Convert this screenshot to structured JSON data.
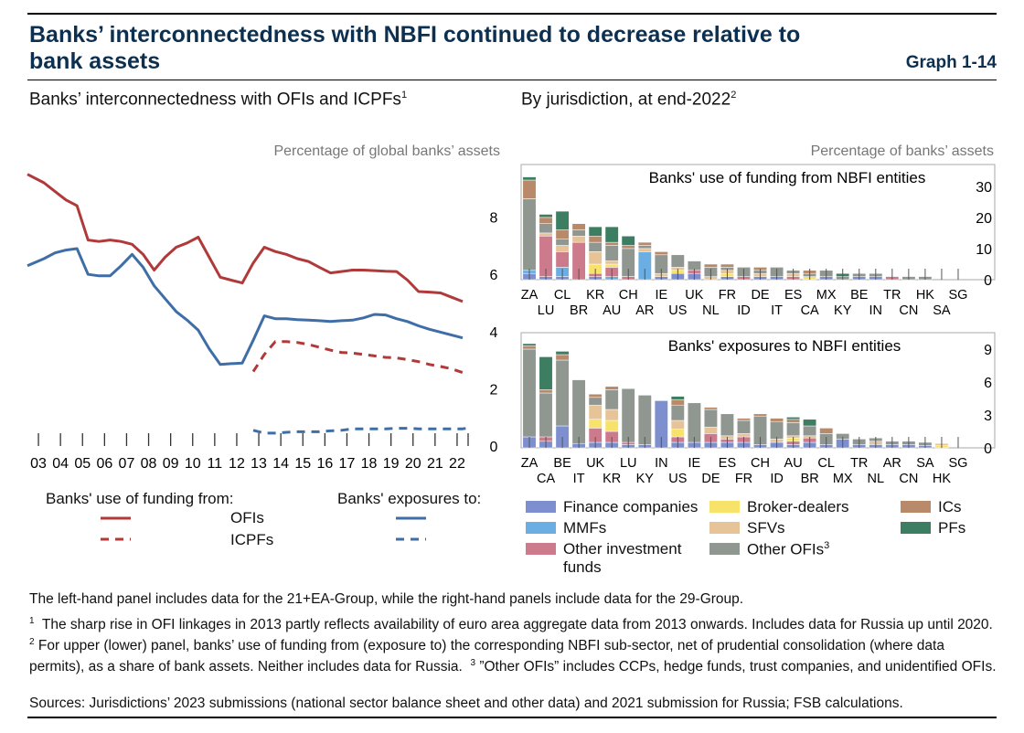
{
  "header": {
    "title": "Banks’ interconnectedness with NBFI continued to decrease relative to bank assets",
    "graph_no": "Graph 1-14"
  },
  "left_panel": {
    "title": "Banks’ interconnectedness with OFIs and ICPFs",
    "title_sup": "1",
    "unit": "Percentage of global banks’ assets",
    "legend_funding": "Banks' use of funding from:",
    "legend_exposures": "Banks' exposures to:",
    "legend_ofis": "OFIs",
    "legend_icpfs": "ICPFs"
  },
  "right_panel": {
    "title": "By jurisdiction, at end-2022",
    "title_sup": "2",
    "unit": "Percentage of banks’ assets",
    "legend": {
      "finance_companies": "Finance companies",
      "mmfs": "MMFs",
      "other_investment_funds": "Other investment funds",
      "broker_dealers": "Broker-dealers",
      "sfvs": "SFVs",
      "other_ofis": "Other OFIs",
      "other_ofis_sup": "3",
      "ics": "ICs",
      "pfs": "PFs"
    }
  },
  "colors": {
    "title": "#0d3050",
    "ofi_red": "#b03a3a",
    "exposure_blue": "#3f6ea7",
    "finance_companies": "#7e8fcf",
    "mmfs": "#6aaee4",
    "other_investment_funds": "#cd7b8c",
    "broker_dealers": "#f7e36a",
    "sfvs": "#e6c498",
    "other_ofis": "#909690",
    "ics": "#b88a6a",
    "pfs": "#3d7e62"
  },
  "notes": {
    "n0": "The left-hand panel includes data for the 21+EA-Group, while the right-hand panels include data for the 29-Group.",
    "n1_sup": "1",
    "n1": "The sharp rise in OFI linkages in 2013 partly reflects availability of euro area aggregate data from 2013 onwards. Includes data for Russia up until 2020.",
    "n2_sup": "2",
    "n2": "For upper (lower) panel, banks’ use of funding from (exposure to) the corresponding NBFI sub-sector, net of prudential consolidation (where data permits), as a share of bank assets. Neither includes data for Russia.",
    "n3_sup": "3",
    "n3": "”Other OFIs” includes CCPs, hedge funds, trust companies, and unidentified OFIs.",
    "sources": "Sources: Jurisdictions’ 2023 submissions (national sector balance sheet and other data) and 2021 submission for Russia; FSB calculations."
  },
  "chart_data": [
    {
      "type": "line",
      "title": "Banks’ interconnectedness with OFIs and ICPFs",
      "ylabel": "Percentage of global banks’ assets",
      "ylim": [
        0,
        10
      ],
      "yticks": [
        0,
        2,
        4,
        6,
        8
      ],
      "categories": [
        "03",
        "04",
        "05",
        "06",
        "07",
        "08",
        "09",
        "10",
        "11",
        "12",
        "13",
        "14",
        "15",
        "16",
        "17",
        "18",
        "19",
        "20",
        "21",
        "22"
      ],
      "series": [
        {
          "name": "Banks' use of funding from OFIs",
          "style": "solid",
          "color": "#b03a3a",
          "x_start": 2002.5,
          "x_end": 2022.5,
          "y_start": 9.5,
          "x": [
            2003.25,
            2003.75,
            2004.25,
            2004.75,
            2005.25,
            2005.75,
            2006.25,
            2006.75,
            2007.25,
            2007.75,
            2008.25,
            2008.75,
            2009.25,
            2009.75,
            2010.25,
            2010.75,
            2011.25,
            2011.75,
            2012.25,
            2012.75,
            2013.25,
            2013.75,
            2014.25,
            2014.75,
            2015.25,
            2015.75,
            2016.25,
            2016.75,
            2017.25,
            2017.75,
            2018.25,
            2018.75,
            2019.25,
            2019.75,
            2020.25,
            2020.75,
            2021.25,
            2021.75,
            2022.25
          ],
          "y": [
            9.2,
            8.9,
            8.6,
            8.4,
            7.2,
            7.15,
            7.2,
            7.15,
            7.05,
            6.7,
            6.15,
            6.6,
            6.95,
            7.1,
            7.3,
            6.6,
            5.9,
            5.8,
            5.7,
            6.4,
            6.95,
            6.8,
            6.7,
            6.55,
            6.45,
            6.25,
            6.05,
            6.1,
            6.15,
            6.15,
            6.13,
            6.11,
            6.1,
            5.8,
            5.4,
            5.38,
            5.35,
            5.2,
            5.05
          ]
        },
        {
          "name": "Banks' use of funding from ICPFs",
          "style": "dashed",
          "color": "#b03a3a",
          "x": [
            2012.75,
            2013.25,
            2013.75,
            2014.25,
            2014.75,
            2015.25,
            2015.75,
            2016.25,
            2016.75,
            2017.25,
            2017.75,
            2018.25,
            2018.75,
            2019.25,
            2019.75,
            2020.25,
            2020.75,
            2021.25,
            2021.75,
            2022.25,
            2022.5
          ],
          "y": [
            2.6,
            3.2,
            3.65,
            3.65,
            3.62,
            3.55,
            3.45,
            3.35,
            3.27,
            3.25,
            3.2,
            3.15,
            3.1,
            3.08,
            3.02,
            2.95,
            2.85,
            2.78,
            2.7,
            2.57,
            2.5
          ]
        },
        {
          "name": "Banks' exposures to OFIs",
          "style": "solid",
          "color": "#3f6ea7",
          "x_start": 2002.5,
          "x_end": 2022.5,
          "y_start": 6.3,
          "x": [
            2003.25,
            2003.75,
            2004.25,
            2004.75,
            2005.25,
            2005.75,
            2006.25,
            2006.75,
            2007.25,
            2007.75,
            2008.25,
            2008.75,
            2009.25,
            2009.75,
            2010.25,
            2010.75,
            2011.25,
            2011.75,
            2012.25,
            2012.75,
            2013.25,
            2013.75,
            2014.25,
            2014.75,
            2015.25,
            2015.75,
            2016.25,
            2016.75,
            2017.25,
            2017.75,
            2018.25,
            2018.75,
            2019.25,
            2019.75,
            2020.25,
            2020.75,
            2021.25,
            2021.75,
            2022.25
          ],
          "y": [
            6.55,
            6.75,
            6.85,
            6.9,
            6.0,
            5.95,
            5.95,
            6.3,
            6.7,
            6.25,
            5.6,
            5.15,
            4.7,
            4.4,
            4.05,
            3.4,
            2.85,
            2.88,
            2.9,
            3.7,
            4.55,
            4.45,
            4.45,
            4.42,
            4.4,
            4.38,
            4.35,
            4.38,
            4.4,
            4.48,
            4.6,
            4.58,
            4.45,
            4.35,
            4.2,
            4.08,
            3.98,
            3.88,
            3.78
          ]
        },
        {
          "name": "Banks' exposures to ICPFs",
          "style": "dashed",
          "color": "#3f6ea7",
          "x": [
            2012.75,
            2013.25,
            2013.75,
            2014.25,
            2014.75,
            2015.25,
            2015.75,
            2016.25,
            2016.75,
            2017.25,
            2017.75,
            2018.25,
            2018.75,
            2019.25,
            2019.75,
            2020.25,
            2020.75,
            2021.25,
            2021.75,
            2022.25,
            2022.5
          ],
          "y": [
            0.55,
            0.45,
            0.45,
            0.48,
            0.5,
            0.5,
            0.5,
            0.53,
            0.55,
            0.6,
            0.6,
            0.6,
            0.6,
            0.62,
            0.62,
            0.6,
            0.6,
            0.6,
            0.6,
            0.6,
            0.63
          ]
        }
      ]
    },
    {
      "type": "bar",
      "stacked": true,
      "title": "Banks' use of funding from NBFI entities",
      "ylabel": "Percentage of banks’ assets",
      "ylim": [
        0,
        37
      ],
      "yticks": [
        0,
        10,
        20,
        30
      ],
      "categories": [
        "ZA",
        "LU",
        "CL",
        "BR",
        "KR",
        "AU",
        "CH",
        "AR",
        "IE",
        "US",
        "UK",
        "NL",
        "FR",
        "ID",
        "DE",
        "IT",
        "ES",
        "CA",
        "MX",
        "KY",
        "BE",
        "IN",
        "TR",
        "CN",
        "HK",
        "SA",
        "SG"
      ],
      "label_rows": [
        [
          "ZA",
          "CL",
          "KR",
          "CH",
          "IE",
          "UK",
          "FR",
          "DE",
          "ES",
          "MX",
          "BE",
          "TR",
          "HK",
          "SG"
        ],
        [
          "LU",
          "BR",
          "AU",
          "AR",
          "US",
          "NL",
          "ID",
          "IT",
          "CA",
          "KY",
          "IN",
          "CN",
          "SA"
        ]
      ],
      "series_order": [
        "finance_companies",
        "mmfs",
        "other_investment_funds",
        "broker_dealers",
        "sfvs",
        "other_ofis",
        "ics",
        "pfs"
      ],
      "values": [
        [
          2,
          1,
          0,
          0,
          0,
          23,
          6,
          1
        ],
        [
          1,
          0,
          13,
          0,
          1,
          3,
          2,
          1
        ],
        [
          1,
          3,
          5,
          0,
          2,
          2,
          3,
          6
        ],
        [
          0,
          0,
          12,
          0,
          2,
          2,
          2,
          0
        ],
        [
          1,
          0,
          1,
          3,
          4,
          3,
          2,
          3
        ],
        [
          0,
          1,
          3,
          1,
          1,
          5,
          1,
          5
        ],
        [
          0,
          0,
          1,
          0,
          0,
          9,
          1,
          3
        ],
        [
          0,
          9,
          0,
          0,
          1,
          1,
          1,
          0
        ],
        [
          1,
          0,
          0,
          0,
          1,
          6,
          1,
          0
        ],
        [
          2,
          0,
          0,
          1,
          1,
          4,
          0,
          0
        ],
        [
          2,
          0,
          1,
          0,
          0,
          3,
          0,
          0
        ],
        [
          0,
          0,
          0,
          0,
          1,
          3,
          1,
          0
        ],
        [
          1,
          0,
          0,
          1,
          1,
          1,
          1,
          0
        ],
        [
          0,
          0,
          1,
          0,
          0,
          3,
          0,
          0
        ],
        [
          1,
          0,
          0,
          0,
          1,
          1,
          1,
          0
        ],
        [
          1,
          0,
          0,
          0,
          0,
          3,
          0,
          0
        ],
        [
          0,
          0,
          1,
          0,
          1,
          1,
          0,
          0
        ],
        [
          0,
          0,
          0,
          1,
          0,
          1,
          1,
          0
        ],
        [
          1,
          0,
          0,
          0,
          0,
          2,
          0,
          0
        ],
        [
          0,
          0,
          0,
          0,
          0,
          1,
          0,
          1
        ],
        [
          1,
          0,
          0,
          0,
          0,
          1,
          0,
          0
        ],
        [
          1,
          0,
          0,
          0,
          0,
          1,
          0,
          0
        ],
        [
          0,
          0,
          1,
          0,
          0,
          0,
          0,
          0
        ],
        [
          0,
          0,
          0,
          0,
          0,
          1,
          0,
          0
        ],
        [
          0,
          0,
          0,
          0,
          0,
          1,
          0,
          0
        ],
        [
          0,
          0,
          0,
          0,
          0,
          0,
          0,
          0
        ],
        [
          0,
          0,
          0,
          0,
          0,
          0,
          0,
          0
        ]
      ]
    },
    {
      "type": "bar",
      "stacked": true,
      "title": "Banks' exposures to NBFI entities",
      "ylabel": "Percentage of banks’ assets",
      "ylim": [
        0,
        10.5
      ],
      "yticks": [
        0,
        3,
        6,
        9
      ],
      "categories": [
        "ZA",
        "CA",
        "BE",
        "IT",
        "UK",
        "KR",
        "LU",
        "KY",
        "IN",
        "US",
        "IE",
        "DE",
        "ES",
        "FR",
        "CH",
        "ID",
        "AU",
        "BR",
        "CL",
        "MX",
        "TR",
        "NL",
        "AR",
        "CN",
        "SA",
        "HK",
        "SG"
      ],
      "label_rows": [
        [
          "ZA",
          "BE",
          "UK",
          "LU",
          "IN",
          "IE",
          "ES",
          "CH",
          "AU",
          "CL",
          "TR",
          "AR",
          "SA",
          "SG"
        ],
        [
          "CA",
          "IT",
          "KR",
          "KY",
          "US",
          "DE",
          "FR",
          "ID",
          "BR",
          "MX",
          "NL",
          "CN",
          "HK"
        ]
      ],
      "series_order": [
        "finance_companies",
        "mmfs",
        "other_investment_funds",
        "broker_dealers",
        "sfvs",
        "other_ofis",
        "ics",
        "pfs"
      ],
      "values": [
        [
          1.0,
          0,
          0,
          0,
          0,
          8.0,
          0.3,
          0.2
        ],
        [
          0.6,
          0,
          0.4,
          0,
          0,
          4.0,
          0.3,
          3.0
        ],
        [
          2.0,
          0,
          0,
          0,
          0,
          6.0,
          0.5,
          0.3
        ],
        [
          0.4,
          0,
          0,
          0,
          0,
          5.8,
          0,
          0
        ],
        [
          0.5,
          0,
          1.3,
          0.8,
          1.3,
          0.7,
          0.3,
          0
        ],
        [
          0.5,
          0,
          1.0,
          1.0,
          1.0,
          1.8,
          0.3,
          0
        ],
        [
          0.3,
          0,
          0.2,
          0,
          0,
          4.9,
          0,
          0
        ],
        [
          0.3,
          0,
          0,
          0,
          0,
          4.5,
          0,
          0
        ],
        [
          4.3,
          0,
          0,
          0,
          0,
          0,
          0,
          0
        ],
        [
          0.5,
          0,
          0.5,
          0.7,
          0.8,
          1.4,
          0.5,
          0.3
        ],
        [
          0.5,
          0,
          0,
          0,
          0,
          3.6,
          0,
          0
        ],
        [
          0.5,
          0,
          0.8,
          0,
          0.6,
          1.6,
          0.2,
          0
        ],
        [
          0.5,
          0,
          0.3,
          0,
          0.3,
          2.0,
          0,
          0
        ],
        [
          0.5,
          0,
          0.5,
          0,
          0.3,
          1.2,
          0.2,
          0
        ],
        [
          0.3,
          0,
          0,
          0,
          0,
          2.6,
          0.2,
          0
        ],
        [
          0.5,
          0,
          0,
          0,
          0.3,
          1.6,
          0.3,
          0
        ],
        [
          0.3,
          0,
          0.3,
          0.3,
          0.2,
          1.2,
          0.3,
          0.2
        ],
        [
          0.5,
          0,
          0.4,
          0,
          0.2,
          0.9,
          0,
          0.6
        ],
        [
          0.3,
          0,
          0,
          0,
          0,
          1.0,
          0.5,
          0
        ],
        [
          0.8,
          0,
          0,
          0,
          0,
          0.5,
          0,
          0
        ],
        [
          0.3,
          0,
          0,
          0,
          0,
          0.5,
          0,
          0
        ],
        [
          0.3,
          0,
          0,
          0,
          0.3,
          0.3,
          0,
          0
        ],
        [
          0.3,
          0,
          0,
          0,
          0,
          0.3,
          0,
          0
        ],
        [
          0.3,
          0,
          0,
          0,
          0,
          0.3,
          0,
          0
        ],
        [
          0.2,
          0,
          0,
          0,
          0,
          0.3,
          0,
          0
        ],
        [
          0,
          0,
          0,
          0.2,
          0.2,
          0,
          0,
          0
        ],
        [
          0,
          0,
          0,
          0,
          0,
          0,
          0,
          0
        ]
      ]
    }
  ]
}
